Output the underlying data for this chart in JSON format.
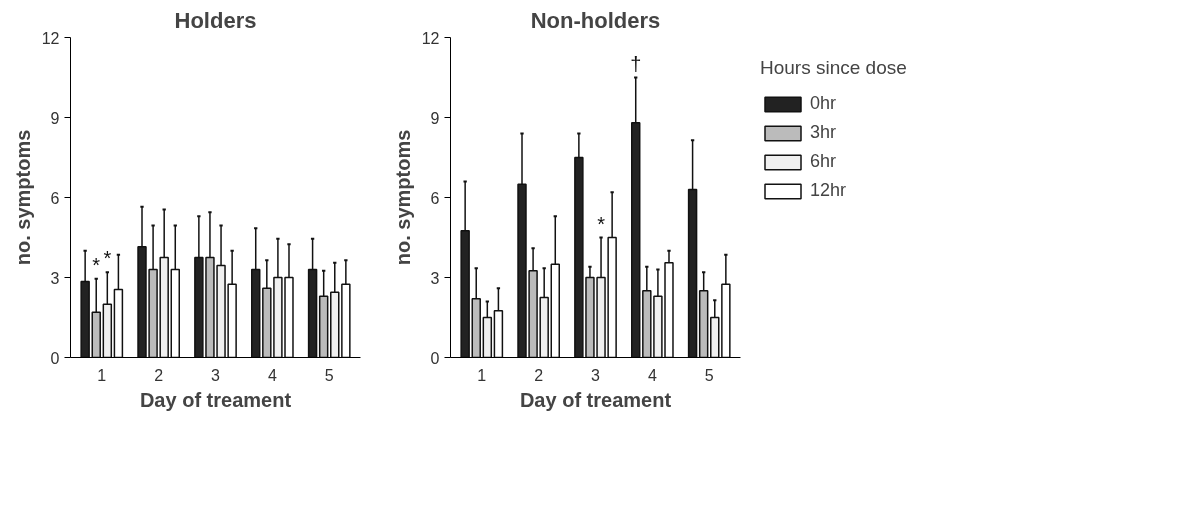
{
  "chart_data": [
    {
      "type": "bar",
      "title": "Holders",
      "xlabel": "Day of treament",
      "ylabel": "no. symptoms",
      "categories": [
        "1",
        "2",
        "3",
        "4",
        "5"
      ],
      "ylim": [
        0,
        12
      ],
      "yticks": [
        0,
        3,
        6,
        9,
        12
      ],
      "grid": false,
      "series": [
        {
          "color": "#222222",
          "values": [
            2.85,
            4.15,
            3.75,
            3.3,
            3.3
          ],
          "errors": [
            [
              2.85,
              4.0
            ],
            [
              4.15,
              5.65
            ],
            [
              3.75,
              5.3
            ],
            [
              3.3,
              4.85
            ],
            [
              3.3,
              4.45
            ]
          ]
        },
        {
          "color": "#bbbbbb",
          "values": [
            1.7,
            3.3,
            3.75,
            2.6,
            2.3
          ],
          "errors": [
            [
              1.7,
              2.95
            ],
            [
              3.3,
              4.95
            ],
            [
              3.75,
              5.45
            ],
            [
              2.6,
              3.65
            ],
            [
              2.3,
              3.25
            ]
          ]
        },
        {
          "color": "#f0f0f0",
          "values": [
            2.0,
            3.75,
            3.45,
            3.0,
            2.45
          ],
          "errors": [
            [
              2.0,
              3.2
            ],
            [
              3.75,
              5.55
            ],
            [
              3.45,
              4.95
            ],
            [
              3.0,
              4.45
            ],
            [
              2.45,
              3.55
            ]
          ]
        },
        {
          "color": "#ffffff",
          "values": [
            2.55,
            3.3,
            2.75,
            3.0,
            2.75
          ],
          "errors": [
            [
              2.55,
              3.85
            ],
            [
              3.3,
              4.95
            ],
            [
              2.75,
              4.0
            ],
            [
              3.0,
              4.25
            ],
            [
              2.75,
              3.65
            ]
          ]
        }
      ],
      "annotations": [
        {
          "text": "*",
          "x": "1",
          "y": 1.7
        },
        {
          "text": "*",
          "x": "1",
          "y": 2.0
        }
      ]
    },
    {
      "type": "bar",
      "title": "Non-holders",
      "xlabel": "Day of treament",
      "ylabel": "no. symptoms",
      "legend_title": "Hours since dose",
      "categories": [
        "1",
        "2",
        "3",
        "4",
        "5"
      ],
      "ylim": [
        0,
        12
      ],
      "yticks": [
        0,
        3,
        6,
        9,
        12
      ],
      "grid": false,
      "legend": "right",
      "series": [
        {
          "name": "0hr",
          "color": "#222222",
          "values": [
            4.75,
            6.5,
            7.5,
            8.8,
            6.3
          ],
          "errors": [
            [
              4.75,
              6.6
            ],
            [
              6.5,
              8.4
            ],
            [
              7.5,
              8.4
            ],
            [
              8.8,
              10.5
            ],
            [
              6.3,
              8.15
            ]
          ]
        },
        {
          "name": "3hr",
          "color": "#bbbbbb",
          "values": [
            2.2,
            3.25,
            3.0,
            2.5,
            2.5
          ],
          "errors": [
            [
              2.2,
              3.35
            ],
            [
              3.25,
              4.1
            ],
            [
              3.0,
              3.4
            ],
            [
              2.5,
              3.4
            ],
            [
              2.5,
              3.2
            ]
          ]
        },
        {
          "name": "6hr",
          "color": "#f0f0f0",
          "values": [
            1.5,
            2.25,
            3.0,
            2.3,
            1.5
          ],
          "errors": [
            [
              1.5,
              2.1
            ],
            [
              2.25,
              3.35
            ],
            [
              3.0,
              4.5
            ],
            [
              2.3,
              3.3
            ],
            [
              1.5,
              2.15
            ]
          ]
        },
        {
          "name": "12hr",
          "color": "#ffffff",
          "values": [
            1.75,
            3.5,
            4.5,
            3.55,
            2.75
          ],
          "errors": [
            [
              1.75,
              2.6
            ],
            [
              3.5,
              5.3
            ],
            [
              4.5,
              6.2
            ],
            [
              3.55,
              4.0
            ],
            [
              2.75,
              3.85
            ]
          ]
        }
      ],
      "annotations": [
        {
          "text": "*",
          "x": "3",
          "y": 3.0
        },
        "†"
      ]
    }
  ]
}
